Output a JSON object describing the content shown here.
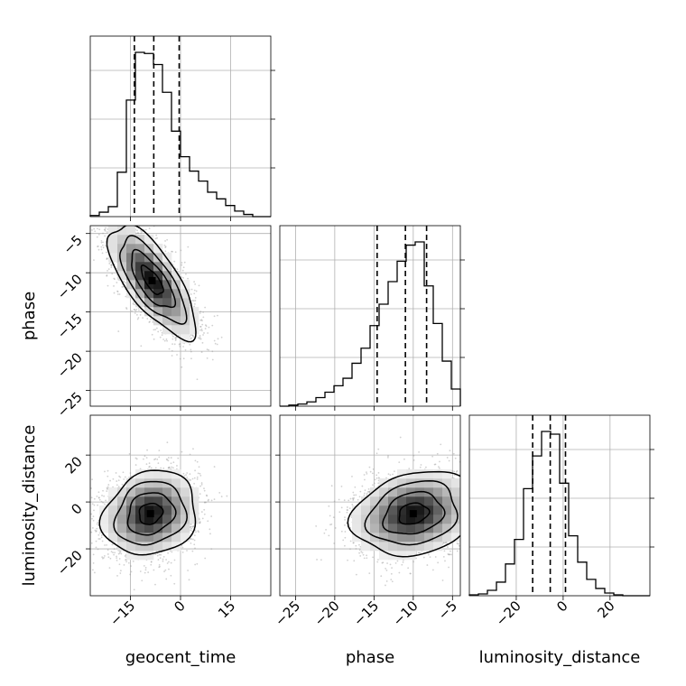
{
  "chart_data": {
    "type": "corner",
    "parameters": [
      "geocent_time",
      "phase",
      "luminosity_distance"
    ],
    "axis_labels": {
      "x": [
        "geocent_time",
        "phase",
        "luminosity_distance"
      ],
      "y": [
        "phase",
        "luminosity_distance"
      ]
    },
    "ranges": {
      "geocent_time": [
        -27,
        27
      ],
      "phase": [
        -27,
        -4
      ],
      "luminosity_distance": [
        -40,
        37
      ]
    },
    "ticks": {
      "geocent_time": [
        -15,
        0,
        15
      ],
      "phase": [
        -25,
        -20,
        -15,
        -10,
        -5
      ],
      "luminosity_distance": [
        -20,
        0,
        20
      ]
    },
    "tick_labels": {
      "geocent_time": [
        "−15",
        "0",
        "15"
      ],
      "phase": [
        "−25",
        "−20",
        "−15",
        "−10",
        "−5"
      ],
      "luminosity_distance": [
        "−20",
        "0",
        "20"
      ]
    },
    "grid": true,
    "quantile_lines": {
      "geocent_time": [
        -13.8,
        -8.0,
        -0.4
      ],
      "phase": [
        -14.6,
        -11.0,
        -8.3
      ],
      "luminosity_distance": [
        -13.0,
        -5.5,
        1.0
      ]
    },
    "marginal_histograms": {
      "geocent_time": {
        "bin_edges": [
          -27.0,
          -24.3,
          -21.6,
          -18.9,
          -16.2,
          -13.5,
          -10.8,
          -8.1,
          -5.4,
          -2.7,
          0.0,
          2.7,
          5.4,
          8.1,
          10.8,
          13.5,
          16.2,
          18.9,
          21.6,
          24.3,
          27.0
        ],
        "counts": [
          1,
          4,
          9,
          40,
          105,
          148,
          147,
          137,
          112,
          77,
          54,
          41,
          32,
          22,
          16,
          10,
          5,
          2,
          0,
          0
        ]
      },
      "phase": {
        "bin_edges": [
          -27.0,
          -25.85,
          -24.7,
          -23.55,
          -22.4,
          -21.25,
          -20.1,
          -18.95,
          -17.8,
          -16.65,
          -15.5,
          -14.35,
          -13.2,
          -12.05,
          -10.9,
          -9.75,
          -8.6,
          -7.45,
          -6.3,
          -5.15,
          -4.0
        ],
        "counts": [
          0,
          1,
          2,
          4,
          8,
          13,
          19,
          26,
          40,
          54,
          75,
          95,
          116,
          135,
          150,
          153,
          112,
          77,
          42,
          16
        ]
      },
      "luminosity_distance": {
        "bin_edges": [
          -40.0,
          -36.15,
          -32.3,
          -28.45,
          -24.6,
          -20.75,
          -16.9,
          -13.05,
          -9.2,
          -5.35,
          -1.5,
          2.35,
          6.2,
          10.05,
          13.9,
          17.75,
          21.6,
          25.45,
          29.3,
          33.15,
          37.0
        ],
        "counts": [
          1,
          2,
          6,
          15,
          35,
          62,
          118,
          154,
          181,
          178,
          124,
          66,
          37,
          18,
          8,
          3,
          1,
          0,
          0,
          0
        ]
      }
    },
    "joint_distributions": [
      {
        "x": "geocent_time",
        "y": "phase",
        "center": [
          -8.5,
          -11.0
        ],
        "std": [
          6.5,
          3.6
        ],
        "correlation": -0.72
      },
      {
        "x": "geocent_time",
        "y": "luminosity_distance",
        "center": [
          -9.0,
          -5.0
        ],
        "std": [
          7.0,
          9.0
        ],
        "correlation": 0.15
      },
      {
        "x": "phase",
        "y": "luminosity_distance",
        "center": [
          -10.0,
          -5.0
        ],
        "std": [
          3.8,
          9.0
        ],
        "correlation": 0.2
      }
    ],
    "contour_levels_sigma": [
      0.5,
      1.0,
      1.5,
      2.0
    ]
  }
}
